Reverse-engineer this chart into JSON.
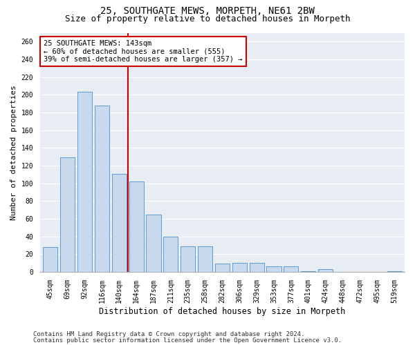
{
  "title1": "25, SOUTHGATE MEWS, MORPETH, NE61 2BW",
  "title2": "Size of property relative to detached houses in Morpeth",
  "xlabel": "Distribution of detached houses by size in Morpeth",
  "ylabel": "Number of detached properties",
  "categories": [
    "45sqm",
    "69sqm",
    "92sqm",
    "116sqm",
    "140sqm",
    "164sqm",
    "187sqm",
    "211sqm",
    "235sqm",
    "258sqm",
    "282sqm",
    "306sqm",
    "329sqm",
    "353sqm",
    "377sqm",
    "401sqm",
    "424sqm",
    "448sqm",
    "472sqm",
    "495sqm",
    "519sqm"
  ],
  "values": [
    28,
    129,
    203,
    188,
    111,
    102,
    65,
    40,
    29,
    29,
    9,
    10,
    10,
    6,
    6,
    1,
    3,
    0,
    0,
    0,
    1
  ],
  "bar_color": "#c9d9ed",
  "bar_edge_color": "#5b9bd5",
  "vline_x": 4.5,
  "vline_color": "#cc0000",
  "annotation_title": "25 SOUTHGATE MEWS: 143sqm",
  "annotation_line1": "← 60% of detached houses are smaller (555)",
  "annotation_line2": "39% of semi-detached houses are larger (357) →",
  "annotation_box_color": "#ffffff",
  "annotation_box_edge": "#cc0000",
  "ylim": [
    0,
    270
  ],
  "yticks": [
    0,
    20,
    40,
    60,
    80,
    100,
    120,
    140,
    160,
    180,
    200,
    220,
    240,
    260
  ],
  "background_color": "#e8edf4",
  "footer1": "Contains HM Land Registry data © Crown copyright and database right 2024.",
  "footer2": "Contains public sector information licensed under the Open Government Licence v3.0.",
  "title1_fontsize": 10,
  "title2_fontsize": 9,
  "xlabel_fontsize": 8.5,
  "ylabel_fontsize": 8,
  "tick_fontsize": 7,
  "annotation_fontsize": 7.5,
  "footer_fontsize": 6.5
}
